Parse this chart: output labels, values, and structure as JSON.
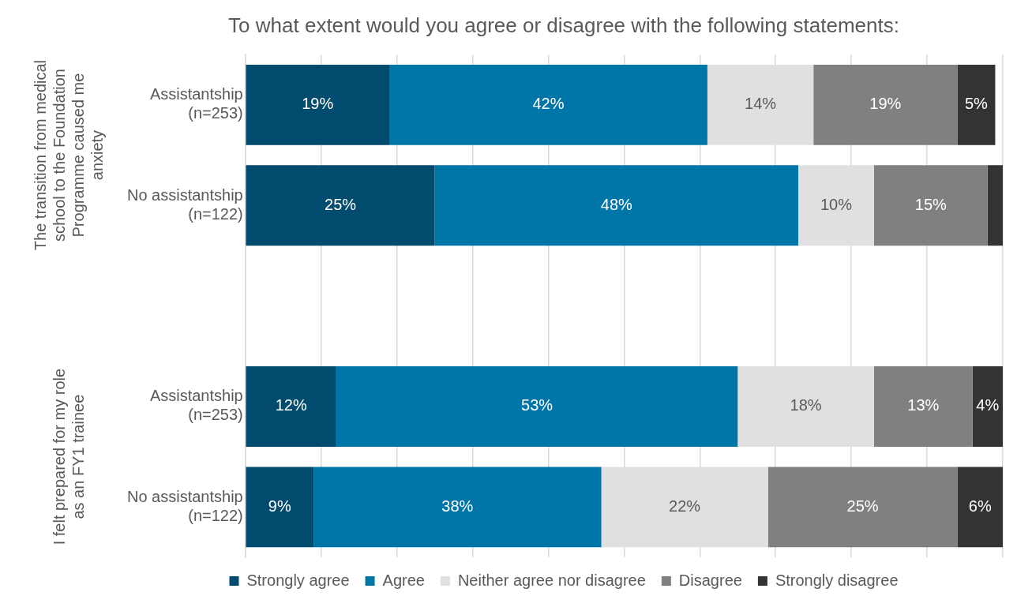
{
  "chart_data": {
    "type": "bar",
    "orientation": "horizontal",
    "stacked": true,
    "title": "To what extent would you agree or disagree with the following statements:",
    "categories": [
      "Assistantship (n=253)",
      "No assistantship (n=122)",
      null,
      "Assistantship (n=253)",
      "No assistantship (n=122)"
    ],
    "series": [
      {
        "name": "Strongly agree",
        "color": "#004b6e",
        "values": [
          19,
          25,
          null,
          12,
          9
        ],
        "value_labels": [
          "19%",
          "25%",
          null,
          "12%",
          "9%"
        ]
      },
      {
        "name": "Agree",
        "color": "#0076a8",
        "values": [
          42,
          48,
          null,
          53,
          38
        ],
        "value_labels": [
          "42%",
          "48%",
          null,
          "53%",
          "38%"
        ]
      },
      {
        "name": "Neither agree nor disagree",
        "color": "#e0e0e2",
        "values": [
          14,
          10,
          null,
          18,
          22
        ],
        "value_labels": [
          "14%",
          "10%",
          null,
          "18%",
          "22%"
        ]
      },
      {
        "name": "Disagree",
        "color": "#808080",
        "values": [
          19,
          15,
          null,
          13,
          25
        ],
        "value_labels": [
          "19%",
          "15%",
          null,
          "13%",
          "25%"
        ]
      },
      {
        "name": "Strongly disagree",
        "color": "#333333",
        "values": [
          5,
          2,
          null,
          4,
          6
        ],
        "value_labels": [
          "5%",
          null,
          null,
          "4%",
          "6%"
        ]
      }
    ],
    "xlim": [
      0,
      100
    ],
    "xticks": [
      {
        "value": 0,
        "label": null
      },
      {
        "value": 10,
        "label": null
      },
      {
        "value": 20,
        "label": null
      },
      {
        "value": 30,
        "label": null
      },
      {
        "value": 40,
        "label": null
      },
      {
        "value": 50,
        "label": null
      },
      {
        "value": 60,
        "label": null
      },
      {
        "value": 70,
        "label": null
      },
      {
        "value": 80,
        "label": null
      },
      {
        "value": 90,
        "label": null
      },
      {
        "value": 100,
        "label": null
      }
    ],
    "tick_labels": "y",
    "grid": "x",
    "legend": "bottom",
    "annotations": [
      "The transition from medical school to the Foundation Programme caused me anxiety",
      "I felt prepared for my role as an FY1 trainee"
    ]
  }
}
